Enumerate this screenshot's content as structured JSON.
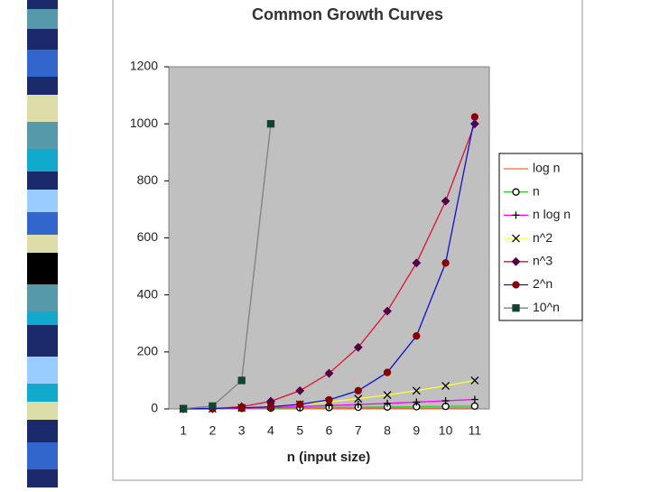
{
  "chart_data": {
    "type": "line",
    "title": "Common Growth Curves",
    "xlabel": "n (input size)",
    "categories": [
      "1",
      "2",
      "3",
      "4",
      "5",
      "6",
      "7",
      "8",
      "9",
      "10",
      "11"
    ],
    "ylim": [
      0,
      1200
    ],
    "yticks": [
      0,
      200,
      400,
      600,
      800,
      1000,
      1200
    ],
    "legend": "right",
    "series": [
      {
        "name": "log n",
        "color": "#ff6633",
        "marker": "none",
        "marker_color": "#ff6633",
        "values": [
          0,
          0,
          1,
          1.58,
          2,
          2.32,
          2.58,
          2.81,
          3,
          3.17,
          3.32
        ]
      },
      {
        "name": "n",
        "color": "#33cc33",
        "marker": "circle-open",
        "marker_color": "#000000",
        "values": [
          0,
          1,
          2,
          3,
          4,
          5,
          6,
          7,
          8,
          9,
          10
        ]
      },
      {
        "name": "n log n",
        "color": "#ff00ff",
        "marker": "plus",
        "marker_color": "#000000",
        "values": [
          0,
          0,
          2,
          4.75,
          8,
          11.61,
          15.51,
          19.65,
          24,
          28.53,
          33.22
        ]
      },
      {
        "name": "n^2",
        "color": "#ffff33",
        "marker": "x",
        "marker_color": "#000000",
        "values": [
          0,
          1,
          4,
          9,
          16,
          25,
          36,
          49,
          64,
          81,
          100
        ]
      },
      {
        "name": "n^3",
        "color": "#dd1133",
        "marker": "diamond",
        "marker_color": "#550044",
        "values": [
          0,
          1,
          8,
          27,
          64,
          125,
          216,
          343,
          512,
          729,
          1000
        ]
      },
      {
        "name": "2^n",
        "color": "#1111cc",
        "marker": "circle",
        "marker_color": "#880000",
        "values": [
          1,
          2,
          4,
          8,
          16,
          32,
          64,
          128,
          256,
          512,
          1024
        ]
      },
      {
        "name": "10^n",
        "color": "#808080",
        "marker": "square",
        "marker_color": "#114433",
        "values": [
          1,
          10,
          100,
          1000,
          null,
          null,
          null,
          null,
          null,
          null,
          null
        ]
      }
    ]
  }
}
